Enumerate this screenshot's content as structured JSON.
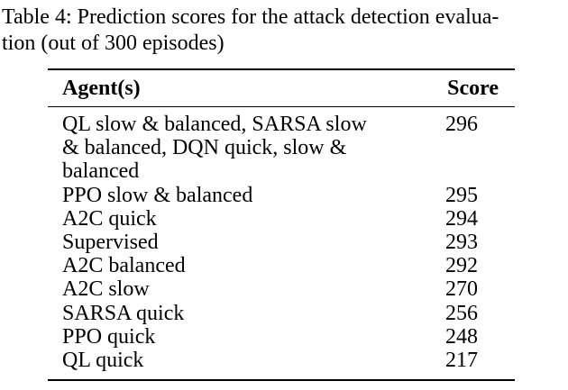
{
  "caption": {
    "line1": "Table 4: Prediction scores for the attack detection evalua-",
    "line2": "tion (out of 300 episodes)"
  },
  "table": {
    "headers": {
      "agent": "Agent(s)",
      "score": "Score"
    },
    "rows": [
      {
        "agent_lines": [
          "QL slow & balanced, SARSA slow",
          "& balanced, DQN quick, slow &",
          "balanced"
        ],
        "score": "296"
      },
      {
        "agent_lines": [
          "PPO slow & balanced"
        ],
        "score": "295"
      },
      {
        "agent_lines": [
          "A2C quick"
        ],
        "score": "294"
      },
      {
        "agent_lines": [
          "Supervised"
        ],
        "score": "293"
      },
      {
        "agent_lines": [
          "A2C balanced"
        ],
        "score": "292"
      },
      {
        "agent_lines": [
          "A2C slow"
        ],
        "score": "270"
      },
      {
        "agent_lines": [
          "SARSA quick"
        ],
        "score": "256"
      },
      {
        "agent_lines": [
          "PPO quick"
        ],
        "score": "248"
      },
      {
        "agent_lines": [
          "QL quick"
        ],
        "score": "217"
      }
    ]
  }
}
